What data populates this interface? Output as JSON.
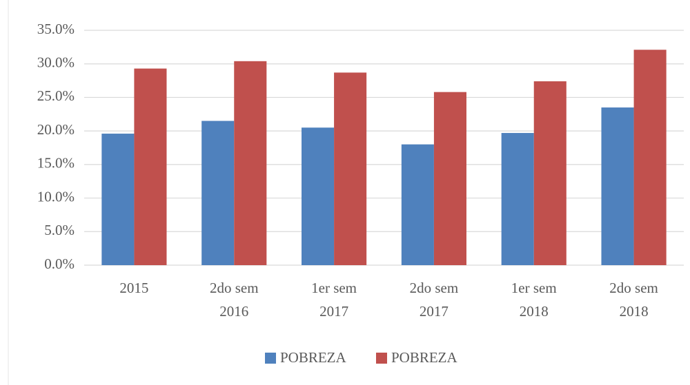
{
  "chart_data": {
    "type": "bar",
    "categories": [
      [
        "2015"
      ],
      [
        "2do sem",
        "2016"
      ],
      [
        "1er sem",
        "2017"
      ],
      [
        "2do sem",
        "2017"
      ],
      [
        "1er sem",
        "2018"
      ],
      [
        "2do sem",
        "2018"
      ]
    ],
    "series": [
      {
        "name": "POBREZA",
        "color": "#4f81bd",
        "values": [
          19.6,
          21.5,
          20.5,
          18.0,
          19.7,
          23.5
        ]
      },
      {
        "name": "POBREZA",
        "color": "#c0504d",
        "values": [
          29.3,
          30.4,
          28.7,
          25.8,
          27.4,
          32.1
        ]
      }
    ],
    "ylim": [
      0,
      35
    ],
    "yticks": [
      {
        "value": 0,
        "label": "0.0%"
      },
      {
        "value": 5,
        "label": "5.0%"
      },
      {
        "value": 10,
        "label": "10.0%"
      },
      {
        "value": 15,
        "label": "15.0%"
      },
      {
        "value": 20,
        "label": "20.0%"
      },
      {
        "value": 25,
        "label": "25.0%"
      },
      {
        "value": 30,
        "label": "30.0%"
      },
      {
        "value": 35,
        "label": "35.0%"
      }
    ],
    "grid": true,
    "legend": "bottom"
  }
}
